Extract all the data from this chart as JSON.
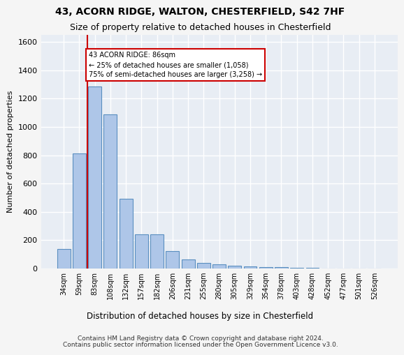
{
  "title1": "43, ACORN RIDGE, WALTON, CHESTERFIELD, S42 7HF",
  "title2": "Size of property relative to detached houses in Chesterfield",
  "xlabel": "Distribution of detached houses by size in Chesterfield",
  "ylabel": "Number of detached properties",
  "bar_values": [
    140,
    815,
    1285,
    1090,
    495,
    240,
    240,
    125,
    65,
    40,
    30,
    20,
    15,
    10,
    10,
    5,
    5,
    0,
    0,
    0,
    0
  ],
  "categories": [
    "34sqm",
    "59sqm",
    "83sqm",
    "108sqm",
    "132sqm",
    "157sqm",
    "182sqm",
    "206sqm",
    "231sqm",
    "255sqm",
    "280sqm",
    "305sqm",
    "329sqm",
    "354sqm",
    "378sqm",
    "403sqm",
    "428sqm",
    "452sqm",
    "477sqm",
    "501sqm",
    "526sqm"
  ],
  "bar_color": "#aec6e8",
  "bar_edge_color": "#5a8fc0",
  "annotation_box_text": "43 ACORN RIDGE: 86sqm\n← 25% of detached houses are smaller (1,058)\n75% of semi-detached houses are larger (3,258) →",
  "vline_color": "#cc0000",
  "box_edge_color": "#cc0000",
  "ylim": [
    0,
    1650
  ],
  "yticks": [
    0,
    200,
    400,
    600,
    800,
    1000,
    1200,
    1400,
    1600
  ],
  "background_color": "#e8edf4",
  "grid_color": "#ffffff",
  "footer1": "Contains HM Land Registry data © Crown copyright and database right 2024.",
  "footer2": "Contains public sector information licensed under the Open Government Licence v3.0."
}
